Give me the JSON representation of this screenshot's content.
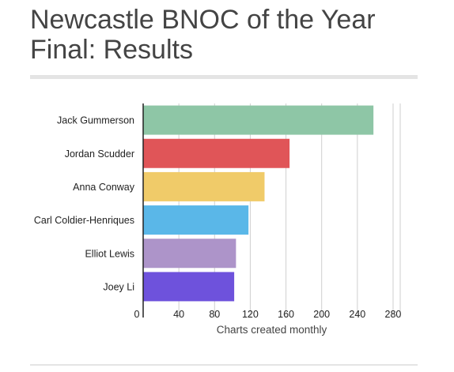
{
  "title_line1": "Newcastle BNOC of the Year",
  "title_line2": "Final: Results",
  "chart_data": {
    "type": "bar",
    "orientation": "horizontal",
    "categories": [
      "Jack Gummerson",
      "Jordan Scudder",
      "Anna Conway",
      "Carl Coldier-Henriques",
      "Elliot Lewis",
      "Joey Li"
    ],
    "values": [
      258,
      164,
      136,
      118,
      104,
      102
    ],
    "colors": [
      "#8ec6a6",
      "#e05558",
      "#f0cb69",
      "#5ab7e8",
      "#ad94c9",
      "#6e52dc"
    ],
    "xlabel": "Charts created monthly",
    "ylabel": "",
    "xlim": [
      0,
      288
    ],
    "xticks": [
      0,
      40,
      80,
      120,
      160,
      200,
      240,
      280
    ],
    "grid": true,
    "legend": "none"
  }
}
